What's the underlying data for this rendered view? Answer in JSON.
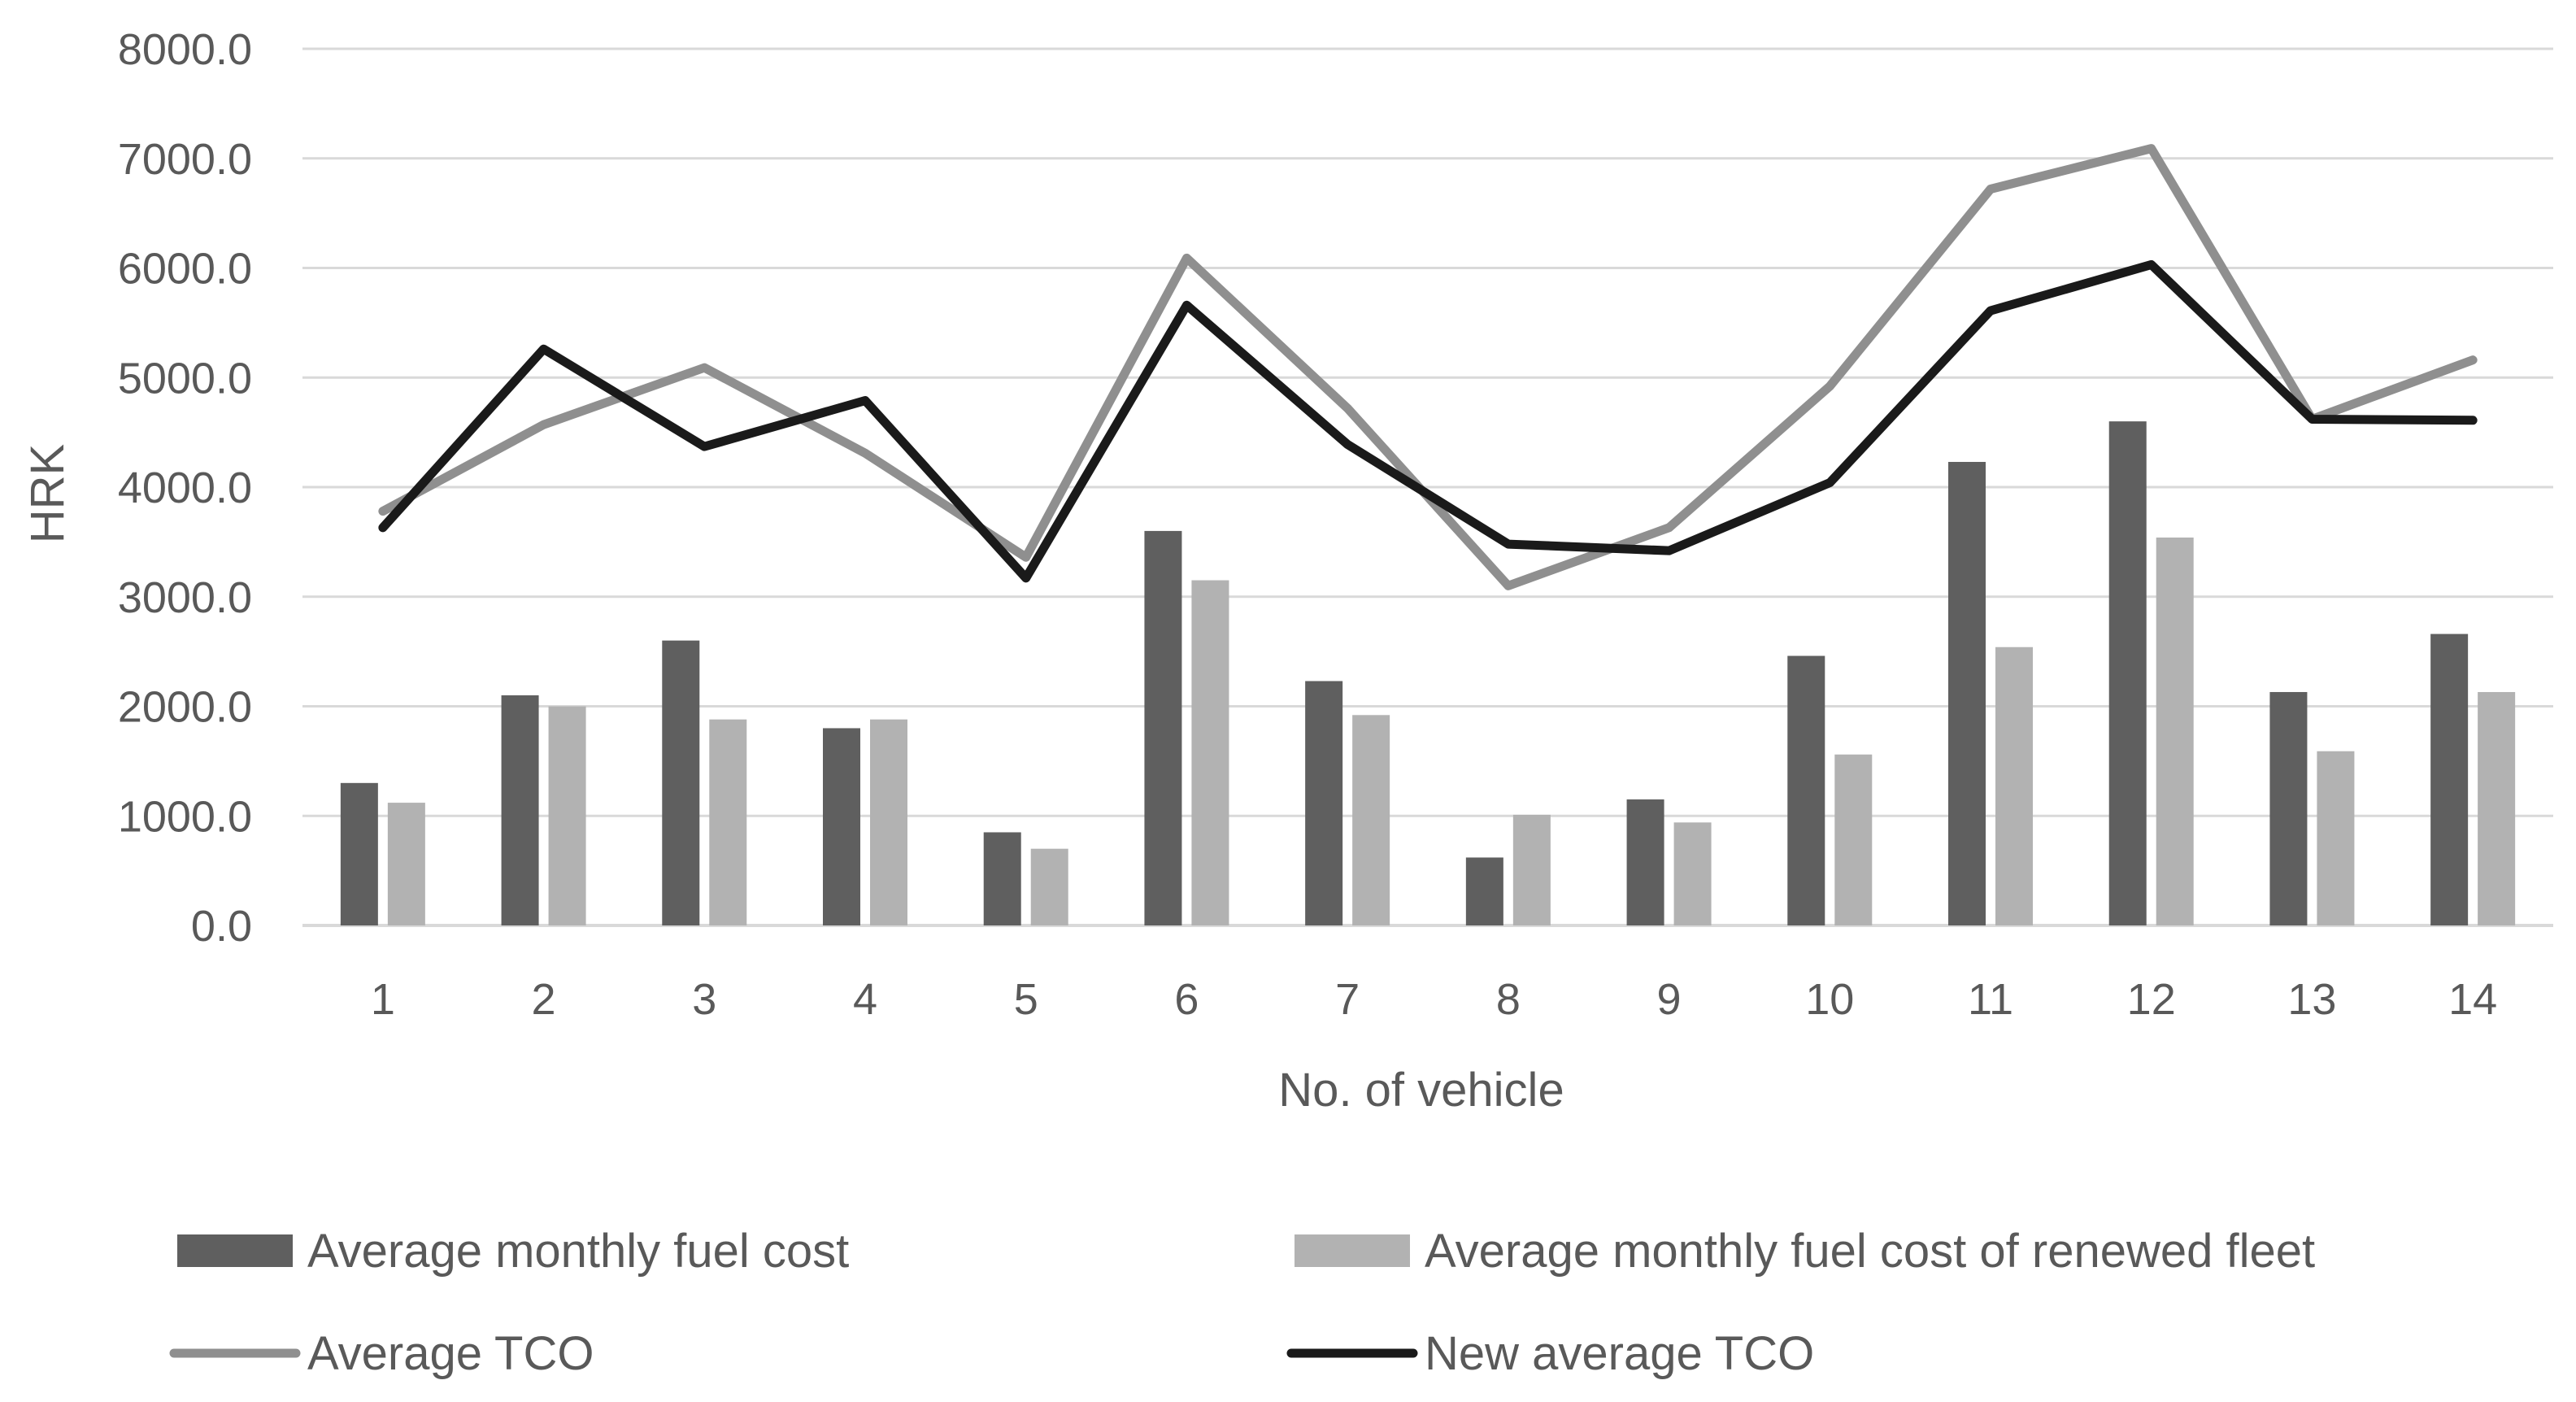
{
  "chart_data": {
    "type": "bar",
    "categories": [
      "1",
      "2",
      "3",
      "4",
      "5",
      "6",
      "7",
      "8",
      "9",
      "10",
      "11",
      "12",
      "13",
      "14"
    ],
    "xlabel": "No. of vehicle",
    "ylabel": "HRK",
    "ylim": [
      0,
      8000
    ],
    "yticks": [
      0,
      1000,
      2000,
      3000,
      4000,
      5000,
      6000,
      7000,
      8000
    ],
    "ytick_labels": [
      "0.0",
      "1000.0",
      "2000.0",
      "3000.0",
      "4000.0",
      "5000.0",
      "6000.0",
      "7000.0",
      "8000.0"
    ],
    "grid": true,
    "legend_position": "bottom",
    "series": [
      {
        "name": "Average monthly fuel cost",
        "kind": "bar",
        "color": "#5f5f5f",
        "values": [
          1300,
          2100,
          2600,
          1800,
          850,
          3600,
          2230,
          620,
          1150,
          2460,
          4230,
          4600,
          2130,
          2660
        ]
      },
      {
        "name": "Average monthly fuel cost of renewed fleet",
        "kind": "bar",
        "color": "#b2b2b2",
        "values": [
          1120,
          2000,
          1880,
          1880,
          700,
          3150,
          1920,
          1010,
          940,
          1560,
          2540,
          3540,
          1590,
          2130
        ]
      },
      {
        "name": "Average TCO",
        "kind": "line",
        "color": "#8f8f8f",
        "values": [
          3780,
          4570,
          5090,
          4310,
          3360,
          6090,
          4720,
          3100,
          3630,
          4920,
          6720,
          7090,
          4620,
          5160
        ]
      },
      {
        "name": "New average TCO",
        "kind": "line",
        "color": "#1a1a1a",
        "values": [
          3630,
          5260,
          4370,
          4790,
          3170,
          5660,
          4390,
          3480,
          3420,
          4040,
          5610,
          6030,
          4620,
          4610
        ]
      }
    ]
  }
}
